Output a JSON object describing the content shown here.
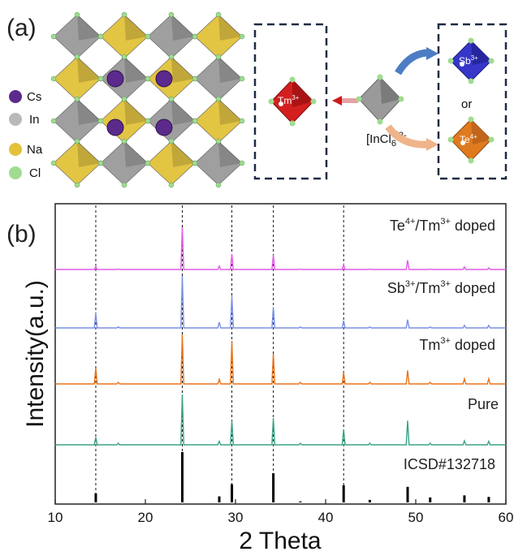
{
  "panel_a": {
    "label": "(a)",
    "legend": [
      {
        "label": "Cs",
        "color": "#5b2a8c"
      },
      {
        "label": "In",
        "color": "#b9b9b9"
      },
      {
        "label": "Na",
        "color": "#e2c23a"
      },
      {
        "label": "Cl",
        "color": "#9fdc8f"
      }
    ],
    "doped_ion": "Tm",
    "doped_ion_charge": "3+",
    "host_unit": "[InCl",
    "host_unit_sub": "6",
    "host_unit_sup": "]3-",
    "co_dopant_1": "Sb",
    "co_dopant_1_charge": "3+",
    "co_dopant_2": "Te",
    "co_dopant_2_charge": "4+",
    "or_text": "or",
    "colors": {
      "tm": "#d31f1f",
      "sb": "#3636c8",
      "te": "#e07a1f",
      "host": "#9a9a9a",
      "frame": "#1d2b45"
    }
  },
  "chart_data": {
    "type": "line",
    "panel_label": "(b)",
    "xlabel": "2 Theta",
    "ylabel": "Intensity(a.u.)",
    "xlim": [
      10,
      60
    ],
    "xticks": [
      10,
      20,
      30,
      40,
      50,
      60
    ],
    "reference_lines": [
      14.5,
      24.1,
      29.6,
      34.2,
      42.0
    ],
    "peaks": [
      14.5,
      17.0,
      24.1,
      28.2,
      29.6,
      34.2,
      37.2,
      42.0,
      44.9,
      49.1,
      51.6,
      55.4,
      58.1
    ],
    "series": [
      {
        "name": "ICSD#132718",
        "style": "sticks",
        "color": "#000000",
        "values": [
          0.18,
          0.0,
          1.0,
          0.12,
          0.36,
          0.58,
          0.02,
          0.34,
          0.05,
          0.31,
          0.1,
          0.14,
          0.11
        ]
      },
      {
        "name": "Pure",
        "style": "line",
        "color": "#3aa287",
        "values": [
          0.15,
          0.03,
          1.0,
          0.07,
          0.48,
          0.53,
          0.03,
          0.3,
          0.03,
          0.48,
          0.03,
          0.08,
          0.07
        ]
      },
      {
        "name": "Tm",
        "name_sup": "3+",
        "name_suffix": " doped",
        "style": "line",
        "color": "#e8731a",
        "values": [
          0.3,
          0.03,
          0.95,
          0.09,
          0.83,
          0.58,
          0.03,
          0.22,
          0.03,
          0.26,
          0.03,
          0.1,
          0.1
        ]
      },
      {
        "name": "Sb",
        "name_sup": "3+",
        "name_mid": "/Tm",
        "name_sup2": "3+",
        "name_suffix": " doped",
        "style": "line",
        "color": "#7a8fe6",
        "values": [
          0.28,
          0.02,
          1.0,
          0.11,
          0.62,
          0.4,
          0.02,
          0.14,
          0.02,
          0.16,
          0.02,
          0.05,
          0.05
        ]
      },
      {
        "name": "Te",
        "name_sup": "4+",
        "name_mid": "/Tm",
        "name_sup2": "3+",
        "name_suffix": " doped",
        "style": "line",
        "color": "#e25ae6",
        "values": [
          0.07,
          0.01,
          1.0,
          0.08,
          0.36,
          0.34,
          0.01,
          0.12,
          0.01,
          0.22,
          0.01,
          0.06,
          0.04
        ]
      }
    ]
  }
}
